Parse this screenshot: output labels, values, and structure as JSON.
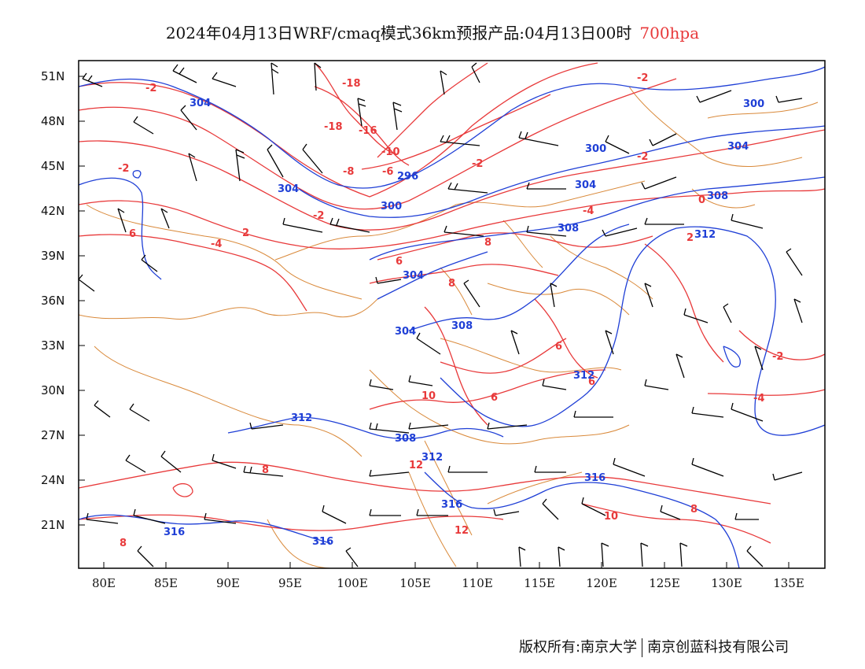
{
  "title": {
    "main": "2024年04月13日WRF/cmaq模式36km预报产品:04月13日00时",
    "level": "700hpa"
  },
  "map": {
    "lat_ticks": [
      "51N",
      "48N",
      "45N",
      "42N",
      "39N",
      "36N",
      "33N",
      "30N",
      "27N",
      "24N",
      "21N"
    ],
    "lon_ticks": [
      "80E",
      "85E",
      "90E",
      "95E",
      "100E",
      "105E",
      "110E",
      "115E",
      "120E",
      "125E",
      "130E",
      "135E"
    ],
    "colors": {
      "temperature_contour": "#e8393a",
      "height_contour": "#1f3fd6",
      "boundary": "#d9893a",
      "wind_barb": "#000000",
      "frame": "#000000"
    },
    "temperature_labels": [
      "-2",
      "-18",
      "-18",
      "-16",
      "-10",
      "-8",
      "-6",
      "-2",
      "-2",
      "-2",
      "-2",
      "-4",
      "-4",
      "-2",
      "2",
      "0",
      "2",
      "6",
      "8",
      "6",
      "8",
      "6",
      "10",
      "6",
      "6",
      "12",
      "8",
      "10",
      "8",
      "8",
      "12",
      "-2",
      "-4"
    ],
    "height_labels": [
      "304",
      "300",
      "300",
      "304",
      "296",
      "300",
      "304",
      "308",
      "308",
      "312",
      "304",
      "304",
      "308",
      "312",
      "312",
      "308",
      "312",
      "316",
      "316",
      "316",
      "316"
    ],
    "wind_barb_icon": "wind-barb-icon"
  },
  "footer": {
    "left": "版权所有:南京大学",
    "right": "南京创蓝科技有限公司"
  }
}
